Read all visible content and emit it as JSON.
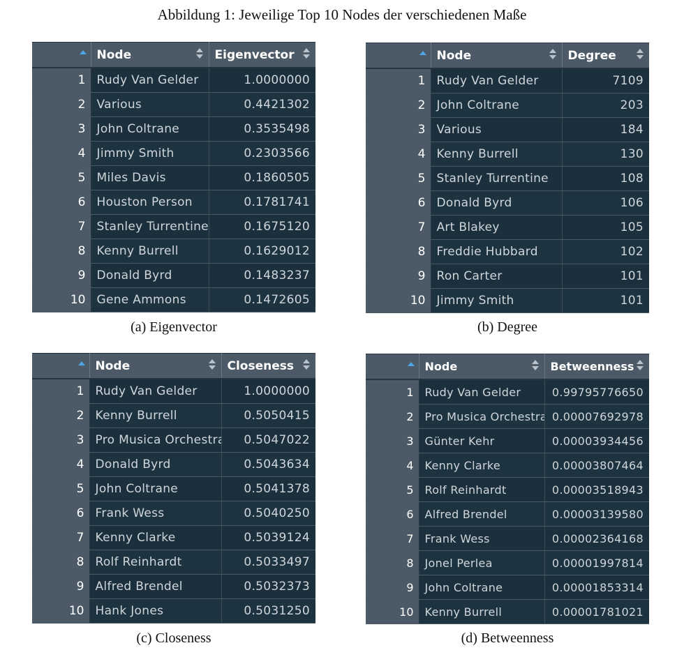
{
  "title": "Abbildung 1: Jeweilige Top 10 Nodes der verschiedenen Maße",
  "panels": [
    {
      "caption": "(a) Eigenvector",
      "col_node": "Node",
      "col_value": "Eigenvector",
      "rows": [
        {
          "i": "1",
          "node": "Rudy Van Gelder",
          "value": "1.0000000"
        },
        {
          "i": "2",
          "node": "Various",
          "value": "0.4421302"
        },
        {
          "i": "3",
          "node": "John Coltrane",
          "value": "0.3535498"
        },
        {
          "i": "4",
          "node": "Jimmy Smith",
          "value": "0.2303566"
        },
        {
          "i": "5",
          "node": "Miles Davis",
          "value": "0.1860505"
        },
        {
          "i": "6",
          "node": "Houston Person",
          "value": "0.1781741"
        },
        {
          "i": "7",
          "node": "Stanley Turrentine",
          "value": "0.1675120"
        },
        {
          "i": "8",
          "node": "Kenny Burrell",
          "value": "0.1629012"
        },
        {
          "i": "9",
          "node": "Donald Byrd",
          "value": "0.1483237"
        },
        {
          "i": "10",
          "node": "Gene Ammons",
          "value": "0.1472605"
        }
      ]
    },
    {
      "caption": "(b) Degree",
      "col_node": "Node",
      "col_value": "Degree",
      "rows": [
        {
          "i": "1",
          "node": "Rudy Van Gelder",
          "value": "7109"
        },
        {
          "i": "2",
          "node": "John Coltrane",
          "value": "203"
        },
        {
          "i": "3",
          "node": "Various",
          "value": "184"
        },
        {
          "i": "4",
          "node": "Kenny Burrell",
          "value": "130"
        },
        {
          "i": "5",
          "node": "Stanley Turrentine",
          "value": "108"
        },
        {
          "i": "6",
          "node": "Donald Byrd",
          "value": "106"
        },
        {
          "i": "7",
          "node": "Art Blakey",
          "value": "105"
        },
        {
          "i": "8",
          "node": "Freddie Hubbard",
          "value": "102"
        },
        {
          "i": "9",
          "node": "Ron Carter",
          "value": "101"
        },
        {
          "i": "10",
          "node": "Jimmy Smith",
          "value": "101"
        }
      ]
    },
    {
      "caption": "(c) Closeness",
      "col_node": "Node",
      "col_value": "Closeness",
      "rows": [
        {
          "i": "1",
          "node": "Rudy Van Gelder",
          "value": "1.0000000"
        },
        {
          "i": "2",
          "node": "Kenny Burrell",
          "value": "0.5050415"
        },
        {
          "i": "3",
          "node": "Pro Musica Orchestra",
          "value": "0.5047022"
        },
        {
          "i": "4",
          "node": "Donald Byrd",
          "value": "0.5043634"
        },
        {
          "i": "5",
          "node": "John Coltrane",
          "value": "0.5041378"
        },
        {
          "i": "6",
          "node": "Frank Wess",
          "value": "0.5040250"
        },
        {
          "i": "7",
          "node": "Kenny Clarke",
          "value": "0.5039124"
        },
        {
          "i": "8",
          "node": "Rolf Reinhardt",
          "value": "0.5033497"
        },
        {
          "i": "9",
          "node": "Alfred Brendel",
          "value": "0.5032373"
        },
        {
          "i": "10",
          "node": "Hank Jones",
          "value": "0.5031250"
        }
      ]
    },
    {
      "caption": "(d) Betweenness",
      "col_node": "Node",
      "col_value": "Betweenness",
      "rows": [
        {
          "i": "1",
          "node": "Rudy Van Gelder",
          "value": "0.99795776650"
        },
        {
          "i": "2",
          "node": "Pro Musica Orchestra",
          "value": "0.00007692978"
        },
        {
          "i": "3",
          "node": "Günter Kehr",
          "value": "0.00003934456"
        },
        {
          "i": "4",
          "node": "Kenny Clarke",
          "value": "0.00003807464"
        },
        {
          "i": "5",
          "node": "Rolf Reinhardt",
          "value": "0.00003518943"
        },
        {
          "i": "6",
          "node": "Alfred Brendel",
          "value": "0.00003139580"
        },
        {
          "i": "7",
          "node": "Frank Wess",
          "value": "0.00002364168"
        },
        {
          "i": "8",
          "node": "Jonel Perlea",
          "value": "0.00001997814"
        },
        {
          "i": "9",
          "node": "John Coltrane",
          "value": "0.00001853314"
        },
        {
          "i": "10",
          "node": "Kenny Burrell",
          "value": "0.00001781021"
        }
      ]
    }
  ]
}
